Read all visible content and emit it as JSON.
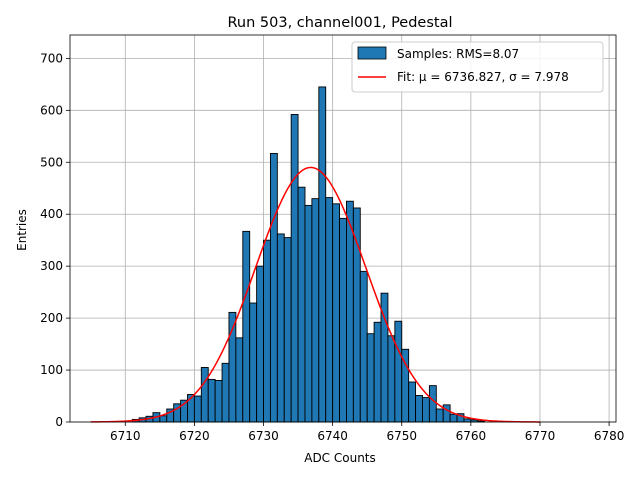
{
  "chart_data": {
    "type": "bar",
    "title": "Run 503, channel001, Pedestal",
    "xlabel": "ADC Counts",
    "ylabel": "Entries",
    "xlim": [
      6702,
      6781
    ],
    "ylim": [
      0,
      745
    ],
    "xticks": [
      6710,
      6720,
      6730,
      6740,
      6750,
      6760,
      6770,
      6780
    ],
    "yticks": [
      0,
      100,
      200,
      300,
      400,
      500,
      600,
      700
    ],
    "grid": true,
    "legend_position": "top-right",
    "bin_width": 1,
    "bin_start": 6711,
    "counts": [
      5,
      8,
      11,
      18,
      12,
      25,
      35,
      42,
      53,
      50,
      105,
      82,
      80,
      113,
      211,
      162,
      367,
      229,
      300,
      350,
      517,
      362,
      355,
      592,
      452,
      417,
      430,
      645,
      432,
      420,
      392,
      425,
      412,
      290,
      170,
      192,
      248,
      166,
      194,
      140,
      77,
      51,
      47,
      70,
      25,
      33,
      15,
      16,
      6,
      4,
      2
    ],
    "series": [
      {
        "name": "Samples: RMS=8.07",
        "kind": "histogram",
        "color": "#1f77b4",
        "edgecolor": "#000000"
      },
      {
        "name": "Fit: μ = 6736.827, σ = 7.978",
        "kind": "line",
        "color": "#ff0000",
        "mean": 6736.827,
        "sigma": 7.978,
        "peak": 490,
        "x_range": [
          6705,
          6770
        ]
      }
    ]
  }
}
